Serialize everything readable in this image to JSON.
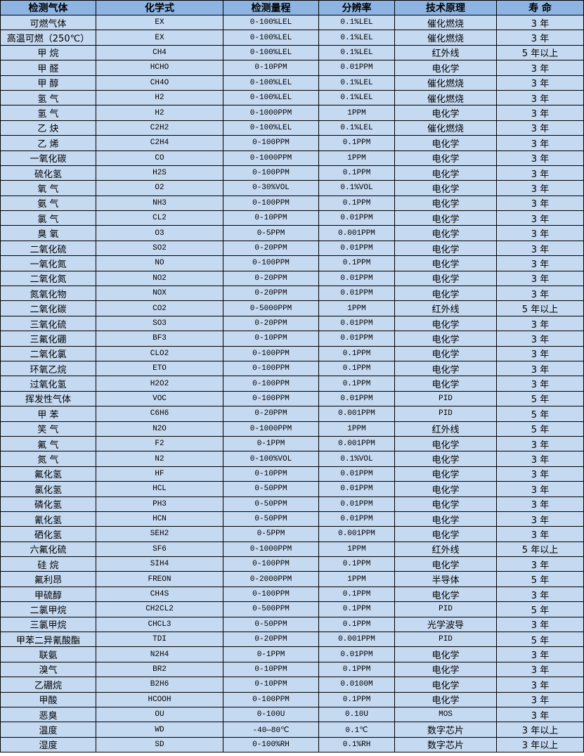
{
  "headers": [
    "检测气体",
    "化学式",
    "检测量程",
    "分辨率",
    "技术原理",
    "寿 命"
  ],
  "rows": [
    [
      "可燃气体",
      "EX",
      "0-100%LEL",
      "0.1%LEL",
      "催化燃烧",
      "3 年"
    ],
    [
      "高温可燃（250℃）",
      "EX",
      "0-100%LEL",
      "0.1%LEL",
      "催化燃烧",
      "3 年"
    ],
    [
      "甲 烷",
      "CH4",
      "0-100%LEL",
      "0.1%LEL",
      "红外线",
      "5 年以上"
    ],
    [
      "甲 醛",
      "HCHO",
      "0-10PPM",
      "0.01PPM",
      "电化学",
      "3 年"
    ],
    [
      "甲 醇",
      "CH4O",
      "0-100%LEL",
      "0.1%LEL",
      "催化燃烧",
      "3 年"
    ],
    [
      "氢 气",
      "H2",
      "0-100%LEL",
      "0.1%LEL",
      "催化燃烧",
      "3 年"
    ],
    [
      "氢 气",
      "H2",
      "0-1000PPM",
      "1PPM",
      "电化学",
      "3 年"
    ],
    [
      "乙 炔",
      "C2H2",
      "0-100%LEL",
      "0.1%LEL",
      "催化燃烧",
      "3 年"
    ],
    [
      "乙 烯",
      "C2H4",
      "0-100PPM",
      "0.1PPM",
      "电化学",
      "3 年"
    ],
    [
      "一氧化碳",
      "CO",
      "0-1000PPM",
      "1PPM",
      "电化学",
      "3 年"
    ],
    [
      "硫化氢",
      "H2S",
      "0-100PPM",
      "0.1PPM",
      "电化学",
      "3 年"
    ],
    [
      "氧 气",
      "O2",
      "0-30%VOL",
      "0.1%VOL",
      "电化学",
      "3 年"
    ],
    [
      "氨 气",
      "NH3",
      "0-100PPM",
      "0.1PPM",
      "电化学",
      "3 年"
    ],
    [
      "氯 气",
      "CL2",
      "0-10PPM",
      "0.01PPM",
      "电化学",
      "3 年"
    ],
    [
      "臭 氧",
      "O3",
      "0-5PPM",
      "0.001PPM",
      "电化学",
      "3 年"
    ],
    [
      "二氧化硫",
      "SO2",
      "0-20PPM",
      "0.01PPM",
      "电化学",
      "3 年"
    ],
    [
      "一氧化氮",
      "NO",
      "0-100PPM",
      "0.1PPM",
      "电化学",
      "3 年"
    ],
    [
      "二氧化氮",
      "NO2",
      "0-20PPM",
      "0.01PPM",
      "电化学",
      "3 年"
    ],
    [
      "氮氧化物",
      "NOX",
      "0-20PPM",
      "0.01PPM",
      "电化学",
      "3 年"
    ],
    [
      "二氧化碳",
      "CO2",
      "0-5000PPM",
      "1PPM",
      "红外线",
      "5 年以上"
    ],
    [
      "三氧化硫",
      "SO3",
      "0-20PPM",
      "0.01PPM",
      "电化学",
      "3 年"
    ],
    [
      "三氟化硼",
      "BF3",
      "0-10PPM",
      "0.01PPM",
      "电化学",
      "3 年"
    ],
    [
      "二氧化氯",
      "CLO2",
      "0-100PPM",
      "0.1PPM",
      "电化学",
      "3 年"
    ],
    [
      "环氧乙烷",
      "ETO",
      "0-100PPM",
      "0.1PPM",
      "电化学",
      "3 年"
    ],
    [
      "过氧化氢",
      "H2O2",
      "0-100PPM",
      "0.1PPM",
      "电化学",
      "3 年"
    ],
    [
      "挥发性气体",
      "VOC",
      "0-100PPM",
      "0.01PPM",
      "PID",
      "5 年"
    ],
    [
      "甲 苯",
      "C6H6",
      "0-20PPM",
      "0.001PPM",
      "PID",
      "5 年"
    ],
    [
      "笑 气",
      "N2O",
      "0-1000PPM",
      "1PPM",
      "红外线",
      "5 年"
    ],
    [
      "氟 气",
      "F2",
      "0-1PPM",
      "0.001PPM",
      "电化学",
      "3 年"
    ],
    [
      "氮 气",
      "N2",
      "0-100%VOL",
      "0.1%VOL",
      "电化学",
      "3 年"
    ],
    [
      "氟化氢",
      "HF",
      "0-10PPM",
      "0.01PPM",
      "电化学",
      "3 年"
    ],
    [
      "氯化氢",
      "HCL",
      "0-50PPM",
      "0.01PPM",
      "电化学",
      "3 年"
    ],
    [
      "磷化氢",
      "PH3",
      "0-50PPM",
      "0.01PPM",
      "电化学",
      "3 年"
    ],
    [
      "氰化氢",
      "HCN",
      "0-50PPM",
      "0.01PPM",
      "电化学",
      "3 年"
    ],
    [
      "硒化氢",
      "SEH2",
      "0-5PPM",
      "0.001PPM",
      "电化学",
      "3 年"
    ],
    [
      "六氟化硫",
      "SF6",
      "0-1000PPM",
      "1PPM",
      "红外线",
      "5 年以上"
    ],
    [
      "硅 烷",
      "SIH4",
      "0-100PPM",
      "0.1PPM",
      "电化学",
      "3 年"
    ],
    [
      "氟利昂",
      "FREON",
      "0-2000PPM",
      "1PPM",
      "半导体",
      "5 年"
    ],
    [
      "甲硫醇",
      "CH4S",
      "0-100PPM",
      "0.1PPM",
      "电化学",
      "3 年"
    ],
    [
      "二氯甲烷",
      "CH2CL2",
      "0-500PPM",
      "0.1PPM",
      "PID",
      "5 年"
    ],
    [
      "三氯甲烷",
      "CHCL3",
      "0-50PPM",
      "0.1PPM",
      "光学波导",
      "3 年"
    ],
    [
      "甲苯二异氰酸酯",
      "TDI",
      "0-20PPM",
      "0.001PPM",
      "PID",
      "5 年"
    ],
    [
      "联氨",
      "N2H4",
      "0-1PPM",
      "0.01PPM",
      "电化学",
      "3 年"
    ],
    [
      "溴气",
      "BR2",
      "0-10PPM",
      "0.1PPM",
      "电化学",
      "3 年"
    ],
    [
      "乙硼烷",
      "B2H6",
      "0-10PPM",
      "0.0100M",
      "电化学",
      "3 年"
    ],
    [
      "甲酸",
      "HCOOH",
      "0-100PPM",
      "0.1PPM",
      "电化学",
      "3 年"
    ],
    [
      "恶臭",
      "OU",
      "0-100U",
      "0.10U",
      "MOS",
      "3 年"
    ],
    [
      "温度",
      "WD",
      "-40—80℃",
      "0.1℃",
      "数字芯片",
      "3 年以上"
    ],
    [
      "湿度",
      "SD",
      "0-100%RH",
      "0.1%RH",
      "数字芯片",
      "3 年以上"
    ]
  ],
  "colors": {
    "header_bg": "#8db4e2",
    "row_bg": "#c5d9f1",
    "border": "#000000"
  }
}
